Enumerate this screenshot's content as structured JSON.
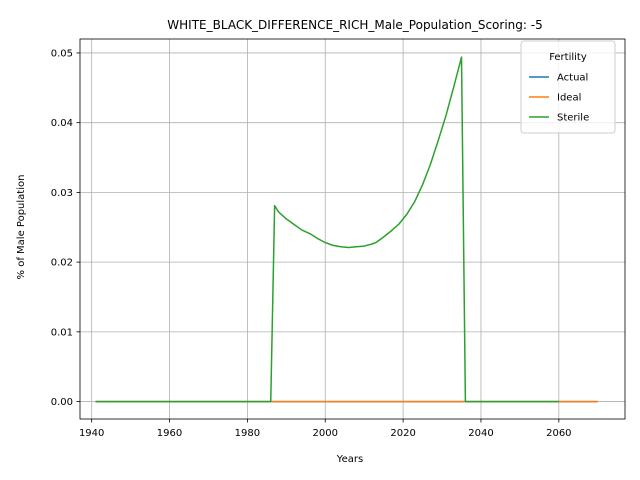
{
  "chart_data": {
    "type": "line",
    "title": "WHITE_BLACK_DIFFERENCE_RICH_Male_Population_Scoring: -5",
    "xlabel": "Years",
    "ylabel": "% of Male Population",
    "xlim": [
      1937,
      2077
    ],
    "ylim": [
      -0.0025,
      0.052
    ],
    "x_ticks": [
      1940,
      1960,
      1980,
      2000,
      2020,
      2040,
      2060
    ],
    "y_ticks": [
      0.0,
      0.01,
      0.02,
      0.03,
      0.04,
      0.05
    ],
    "y_tick_labels": [
      "0.00",
      "0.01",
      "0.02",
      "0.03",
      "0.04",
      "0.05"
    ],
    "grid": true,
    "legend": {
      "title": "Fertility",
      "placement": "top-right"
    },
    "series": [
      {
        "name": "Actual",
        "color": "#1f77b4",
        "x": [
          1941,
          2070
        ],
        "y": [
          0.0,
          0.0
        ]
      },
      {
        "name": "Ideal",
        "color": "#ff7f0e",
        "x": [
          1941,
          2070
        ],
        "y": [
          0.0,
          0.0
        ]
      },
      {
        "name": "Sterile",
        "color": "#2ca02c",
        "x": [
          1941,
          1986,
          1987,
          1988,
          1990,
          1992,
          1994,
          1996,
          1998,
          2000,
          2002,
          2004,
          2006,
          2008,
          2010,
          2012,
          2013,
          2015,
          2017,
          2019,
          2021,
          2023,
          2025,
          2027,
          2029,
          2031,
          2033,
          2035,
          2036,
          2060
        ],
        "y": [
          0.0,
          0.0,
          0.0281,
          0.0272,
          0.0262,
          0.0254,
          0.0246,
          0.0241,
          0.0234,
          0.0228,
          0.0224,
          0.0222,
          0.0221,
          0.0222,
          0.0223,
          0.0226,
          0.0228,
          0.0236,
          0.0245,
          0.0255,
          0.0269,
          0.0287,
          0.0311,
          0.034,
          0.0374,
          0.041,
          0.0451,
          0.0494,
          0.0,
          0.0
        ]
      }
    ]
  }
}
